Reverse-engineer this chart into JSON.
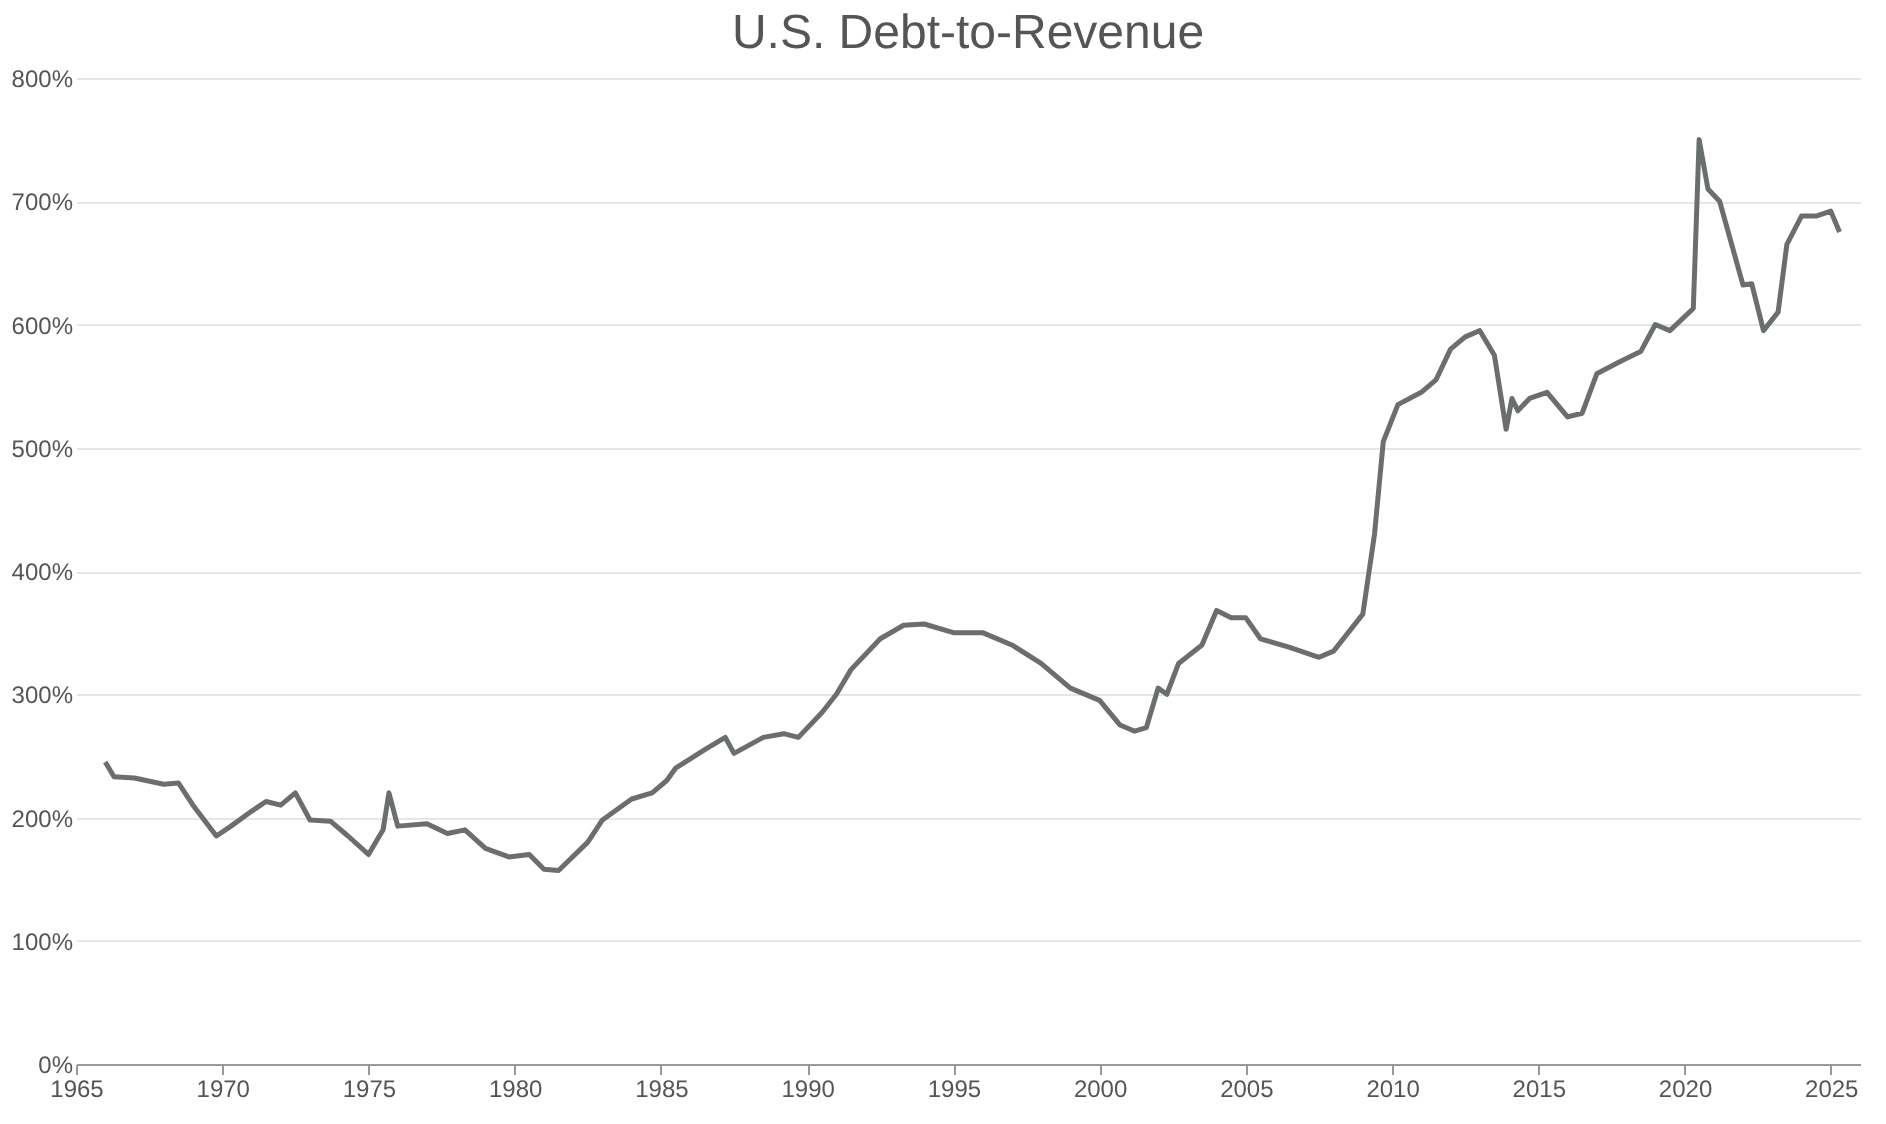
{
  "chart_data": {
    "type": "line",
    "title": "U.S. Debt-to-Revenue",
    "x": [
      1966.0,
      1966.3,
      1967,
      1968,
      1968.5,
      1969,
      1969.8,
      1970.3,
      1971,
      1971.5,
      1972,
      1972.5,
      1973,
      1973.7,
      1974.3,
      1975,
      1975.5,
      1975.7,
      1976,
      1977,
      1977.7,
      1978.3,
      1979,
      1979.8,
      1980.5,
      1981,
      1981.5,
      1982.5,
      1983,
      1984,
      1984.7,
      1985.2,
      1985.5,
      1986.5,
      1987.2,
      1987.5,
      1988.5,
      1989.2,
      1989.7,
      1990.5,
      1991,
      1991.5,
      1992.5,
      1993.3,
      1994,
      1995,
      1996,
      1997,
      1998,
      1999,
      2000,
      2000.7,
      2001.2,
      2001.6,
      2002,
      2002.3,
      2002.7,
      2003.5,
      2004,
      2004.5,
      2005,
      2005.5,
      2006.5,
      2007.5,
      2008,
      2008.5,
      2009,
      2009.4,
      2009.7,
      2010.2,
      2011,
      2011.5,
      2012,
      2012.5,
      2013,
      2013.5,
      2013.9,
      2014.1,
      2014.3,
      2014.7,
      2015.3,
      2016,
      2016.5,
      2017,
      2017.8,
      2018.5,
      2019,
      2019.5,
      2020.3,
      2020.5,
      2020.8,
      2021.2,
      2022,
      2022.3,
      2022.7,
      2023.2,
      2023.5,
      2024,
      2024.5,
      2025,
      2025.3
    ],
    "series": [
      {
        "color": "#6b6f6b",
        "values": [
          245,
          233,
          232,
          227,
          228,
          210,
          185,
          193,
          205,
          213,
          210,
          220,
          198,
          197,
          185,
          170,
          190,
          220,
          193,
          195,
          187,
          190,
          175,
          168,
          170,
          158,
          157,
          180,
          198,
          215,
          220,
          230,
          240,
          255,
          265,
          252,
          265,
          268,
          265,
          285,
          300,
          320,
          345,
          356,
          357,
          350,
          350,
          340,
          325,
          305,
          295,
          275,
          270,
          273,
          305,
          300,
          325,
          340,
          368,
          362,
          362,
          345,
          338,
          330,
          335,
          350,
          365,
          430,
          505,
          535,
          545,
          555,
          580,
          590,
          595,
          575,
          515,
          540,
          530,
          540,
          545,
          525,
          528,
          560,
          570,
          578,
          600,
          595,
          613,
          750,
          710,
          700,
          632,
          633,
          595,
          610,
          665,
          688,
          688,
          692,
          675
        ]
      }
    ],
    "xlim": [
      1965,
      2026
    ],
    "xticks": [
      1965,
      1970,
      1975,
      1980,
      1985,
      1990,
      1995,
      2000,
      2005,
      2010,
      2015,
      2020,
      2025
    ],
    "ylim": [
      0,
      800
    ],
    "yticks": [
      {
        "value": 0,
        "label": "0%"
      },
      {
        "value": 100,
        "label": "100%"
      },
      {
        "value": 200,
        "label": "200%"
      },
      {
        "value": 300,
        "label": "300%"
      },
      {
        "value": 400,
        "label": "400%"
      },
      {
        "value": 500,
        "label": "500%"
      },
      {
        "value": 600,
        "label": "600%"
      },
      {
        "value": 700,
        "label": "700%"
      },
      {
        "value": 800,
        "label": "800%"
      }
    ],
    "grid": "y",
    "marker": "none",
    "line_style": "solid"
  }
}
